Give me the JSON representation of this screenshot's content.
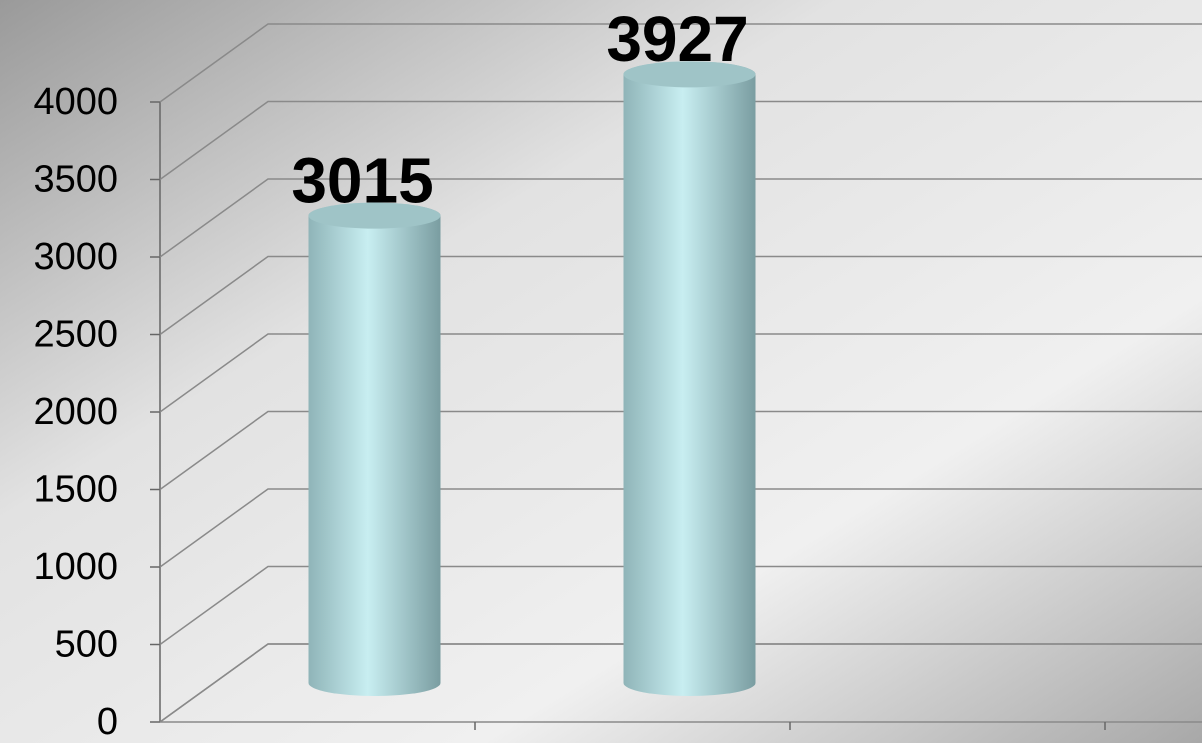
{
  "chart_data": {
    "type": "bar",
    "categories": [
      null,
      null
    ],
    "values": [
      3015,
      3927
    ],
    "color": "#bfe6ea",
    "ylim": [
      0,
      4000
    ],
    "yticks": [
      0,
      500,
      1000,
      1500,
      2000,
      2500,
      3000,
      3500,
      4000
    ],
    "grid": true
  }
}
